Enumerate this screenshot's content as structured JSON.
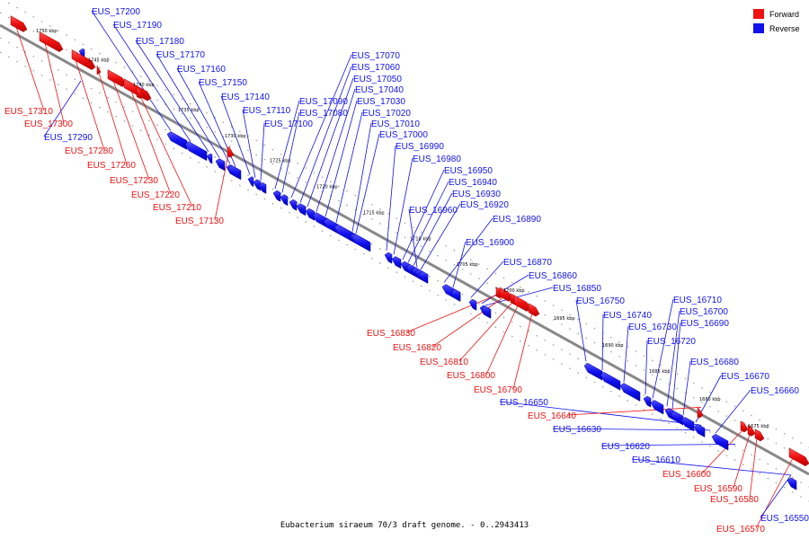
{
  "colors": {
    "forward": "#ee1111",
    "reverse": "#1111ee",
    "forward_dark": "#aa0000",
    "reverse_dark": "#0000aa",
    "axis": "#888888"
  },
  "legend": [
    {
      "label": "Forward",
      "strand": "forward"
    },
    {
      "label": "Reverse",
      "strand": "reverse"
    }
  ],
  "caption": "Eubacterium siraeum 70/3 draft genome. - 0..2943413",
  "ticks": [
    "1750 kbp",
    "1745 kbp",
    "1740 kbp",
    "1735 kbp",
    "1730 kbp",
    "1725 kbp",
    "1720 kbp",
    "1715 kbp",
    "1710 kbp",
    "1705 kbp",
    "1700 kbp",
    "1695 kbp",
    "1690 kbp",
    "1685 kbp",
    "1680 kbp",
    "1675 kbp"
  ],
  "genes": [
    {
      "id": "EUS_17310",
      "strand": "forward"
    },
    {
      "id": "EUS_17300",
      "strand": "forward"
    },
    {
      "id": "EUS_17290",
      "strand": "reverse"
    },
    {
      "id": "EUS_17280",
      "strand": "forward"
    },
    {
      "id": "EUS_17260",
      "strand": "forward"
    },
    {
      "id": "EUS_17230",
      "strand": "forward"
    },
    {
      "id": "EUS_17220",
      "strand": "forward"
    },
    {
      "id": "EUS_17210",
      "strand": "forward"
    },
    {
      "id": "EUS_17130",
      "strand": "forward"
    },
    {
      "id": "EUS_17200",
      "strand": "reverse"
    },
    {
      "id": "EUS_17190",
      "strand": "reverse"
    },
    {
      "id": "EUS_17180",
      "strand": "reverse"
    },
    {
      "id": "EUS_17170",
      "strand": "reverse"
    },
    {
      "id": "EUS_17160",
      "strand": "reverse"
    },
    {
      "id": "EUS_17150",
      "strand": "reverse"
    },
    {
      "id": "EUS_17140",
      "strand": "reverse"
    },
    {
      "id": "EUS_17110",
      "strand": "reverse"
    },
    {
      "id": "EUS_17100",
      "strand": "reverse"
    },
    {
      "id": "EUS_17090",
      "strand": "reverse"
    },
    {
      "id": "EUS_17080",
      "strand": "reverse"
    },
    {
      "id": "EUS_17070",
      "strand": "reverse"
    },
    {
      "id": "EUS_17060",
      "strand": "reverse"
    },
    {
      "id": "EUS_17050",
      "strand": "reverse"
    },
    {
      "id": "EUS_17040",
      "strand": "reverse"
    },
    {
      "id": "EUS_17030",
      "strand": "reverse"
    },
    {
      "id": "EUS_17020",
      "strand": "reverse"
    },
    {
      "id": "EUS_17010",
      "strand": "reverse"
    },
    {
      "id": "EUS_17000",
      "strand": "reverse"
    },
    {
      "id": "EUS_16990",
      "strand": "reverse"
    },
    {
      "id": "EUS_16980",
      "strand": "reverse"
    },
    {
      "id": "EUS_16950",
      "strand": "reverse"
    },
    {
      "id": "EUS_16940",
      "strand": "reverse"
    },
    {
      "id": "EUS_16930",
      "strand": "reverse"
    },
    {
      "id": "EUS_16960",
      "strand": "reverse"
    },
    {
      "id": "EUS_16920",
      "strand": "reverse"
    },
    {
      "id": "EUS_16890",
      "strand": "reverse"
    },
    {
      "id": "EUS_16900",
      "strand": "reverse"
    },
    {
      "id": "EUS_16870",
      "strand": "reverse"
    },
    {
      "id": "EUS_16860",
      "strand": "reverse"
    },
    {
      "id": "EUS_16850",
      "strand": "reverse"
    },
    {
      "id": "EUS_16750",
      "strand": "reverse"
    },
    {
      "id": "EUS_16740",
      "strand": "reverse"
    },
    {
      "id": "EUS_16730",
      "strand": "reverse"
    },
    {
      "id": "EUS_16720",
      "strand": "reverse"
    },
    {
      "id": "EUS_16710",
      "strand": "reverse"
    },
    {
      "id": "EUS_16700",
      "strand": "reverse"
    },
    {
      "id": "EUS_16690",
      "strand": "reverse"
    },
    {
      "id": "EUS_16680",
      "strand": "reverse"
    },
    {
      "id": "EUS_16670",
      "strand": "reverse"
    },
    {
      "id": "EUS_16660",
      "strand": "reverse"
    },
    {
      "id": "EUS_16830",
      "strand": "forward"
    },
    {
      "id": "EUS_16820",
      "strand": "forward"
    },
    {
      "id": "EUS_16810",
      "strand": "forward"
    },
    {
      "id": "EUS_16800",
      "strand": "forward"
    },
    {
      "id": "EUS_16790",
      "strand": "forward"
    },
    {
      "id": "EUS_16650",
      "strand": "reverse"
    },
    {
      "id": "EUS_16640",
      "strand": "forward"
    },
    {
      "id": "EUS_16630",
      "strand": "reverse"
    },
    {
      "id": "EUS_16620",
      "strand": "reverse"
    },
    {
      "id": "EUS_16610",
      "strand": "reverse"
    },
    {
      "id": "EUS_16600",
      "strand": "forward"
    },
    {
      "id": "EUS_16590",
      "strand": "forward"
    },
    {
      "id": "EUS_16580",
      "strand": "forward"
    },
    {
      "id": "EUS_16570",
      "strand": "forward"
    },
    {
      "id": "EUS_16550",
      "strand": "reverse"
    }
  ]
}
